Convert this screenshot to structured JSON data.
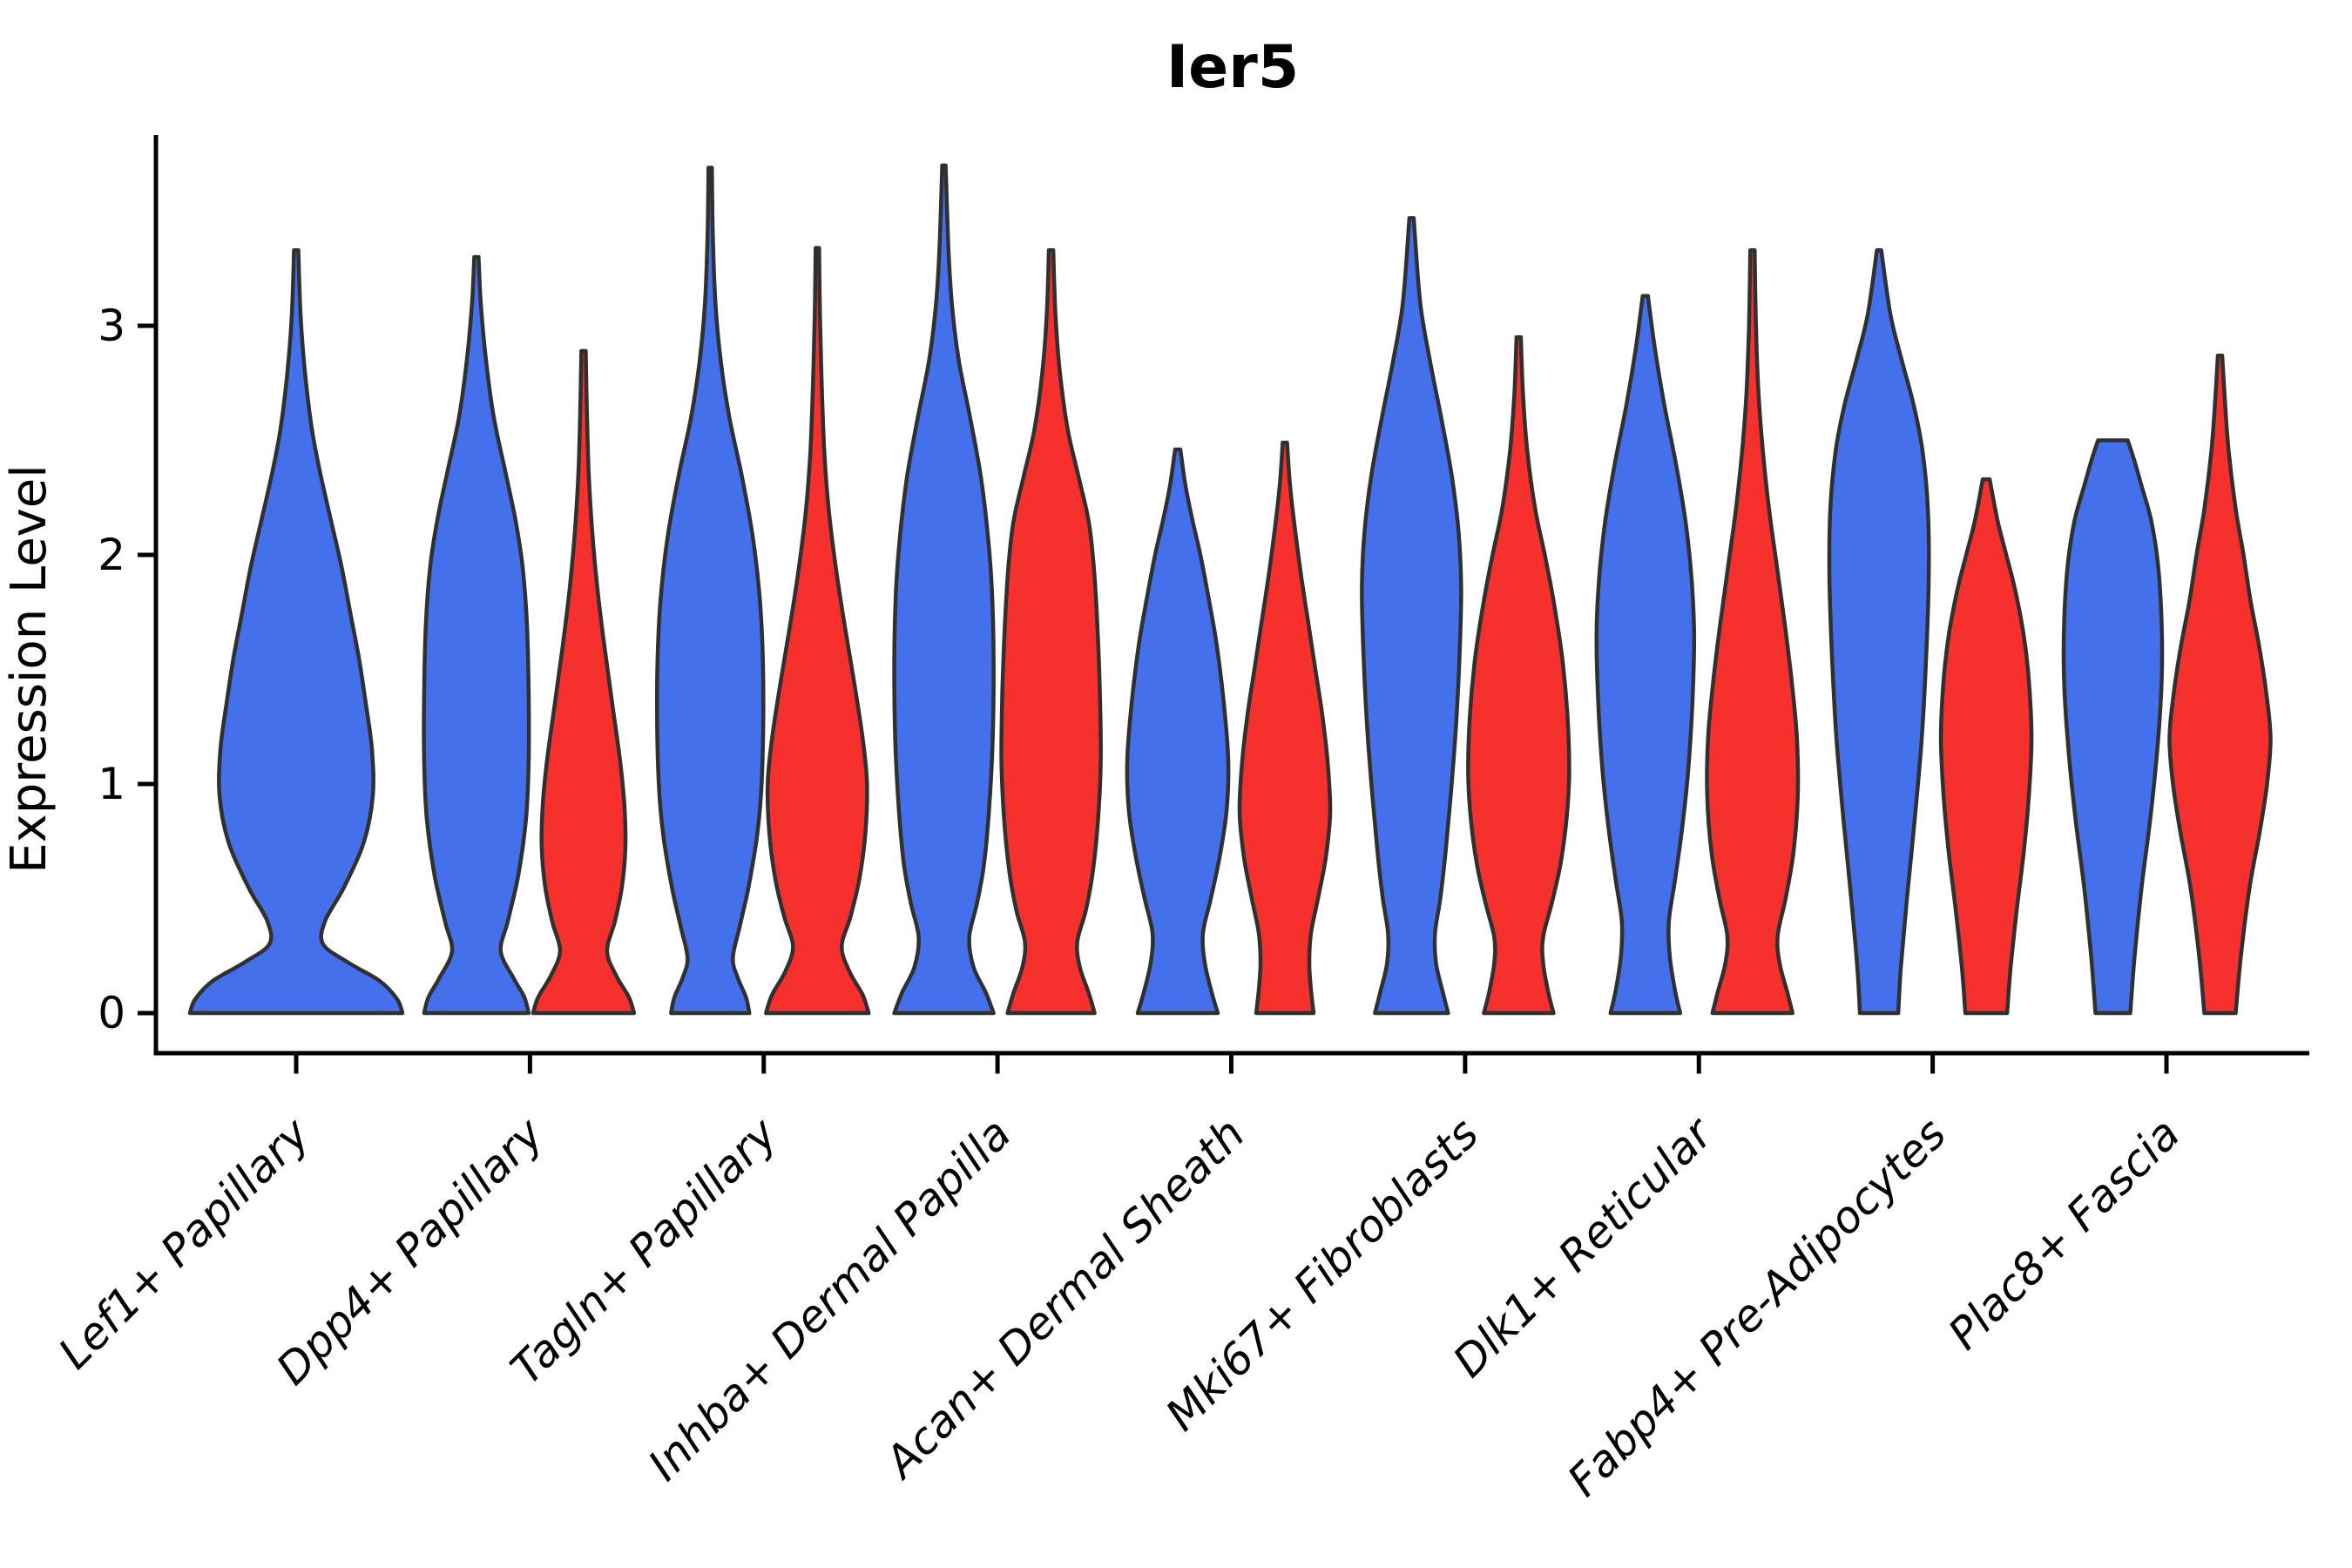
{
  "title": "Ier5",
  "axes": {
    "ylabel": "Expression Level",
    "y_tick_labels": [
      "0",
      "1",
      "2",
      "3"
    ],
    "y_tick_values": [
      0,
      1,
      2,
      3
    ]
  },
  "colors": {
    "blue_fill": "#4570EB",
    "red_fill": "#F5302D",
    "outline": "#303030",
    "axis": "#000000"
  },
  "chart_data": {
    "type": "violin",
    "title": "Ier5",
    "ylabel": "Expression Level",
    "yticks": [
      0,
      1,
      2,
      3
    ],
    "ylim": [
      0,
      3.85
    ],
    "grid": false,
    "legend": "none",
    "categories": [
      "Lef1+ Papillary",
      "Dpp4+ Papillary",
      "Tagln+ Papillary",
      "Inhba+ Dermal Papilla",
      "Acan+ Dermal Sheath",
      "Mki67+ Fibroblasts",
      "Dlk1+ Reticular",
      "Fabp4+ Pre-Adipocytes",
      "Plac8+ Fascia"
    ],
    "series": [
      {
        "name": "blue",
        "color": "#4570EB"
      },
      {
        "name": "red",
        "color": "#F5302D"
      }
    ],
    "violins": [
      {
        "category": "Lef1+ Papillary",
        "series": "blue",
        "single": true,
        "max_value": 3.33,
        "profile": [
          [
            0,
            122
          ],
          [
            0.06,
            116
          ],
          [
            0.14,
            96
          ],
          [
            0.22,
            60
          ],
          [
            0.3,
            31
          ],
          [
            0.4,
            33
          ],
          [
            0.55,
            55
          ],
          [
            0.75,
            78
          ],
          [
            0.95,
            88
          ],
          [
            1.15,
            87
          ],
          [
            1.35,
            80
          ],
          [
            1.55,
            72
          ],
          [
            1.75,
            62
          ],
          [
            1.95,
            52
          ],
          [
            2.15,
            40
          ],
          [
            2.35,
            28
          ],
          [
            2.55,
            18
          ],
          [
            2.8,
            10
          ],
          [
            3.05,
            5
          ],
          [
            3.33,
            2.5
          ]
        ]
      },
      {
        "category": "Dpp4+ Papillary",
        "series": "blue",
        "single": false,
        "max_value": 3.3,
        "profile": [
          [
            0,
            60
          ],
          [
            0.07,
            55
          ],
          [
            0.15,
            43
          ],
          [
            0.27,
            28
          ],
          [
            0.4,
            36
          ],
          [
            0.6,
            48
          ],
          [
            0.85,
            57
          ],
          [
            1.1,
            60
          ],
          [
            1.4,
            60
          ],
          [
            1.7,
            58
          ],
          [
            1.95,
            53
          ],
          [
            2.15,
            45
          ],
          [
            2.35,
            34
          ],
          [
            2.6,
            20
          ],
          [
            2.85,
            11
          ],
          [
            3.1,
            5
          ],
          [
            3.3,
            2.5
          ]
        ]
      },
      {
        "category": "Dpp4+ Papillary",
        "series": "red",
        "single": false,
        "max_value": 2.89,
        "profile": [
          [
            0,
            58
          ],
          [
            0.07,
            52
          ],
          [
            0.16,
            38
          ],
          [
            0.27,
            27
          ],
          [
            0.4,
            36
          ],
          [
            0.55,
            44
          ],
          [
            0.72,
            48
          ],
          [
            0.9,
            47
          ],
          [
            1.1,
            42
          ],
          [
            1.35,
            33
          ],
          [
            1.6,
            24
          ],
          [
            1.85,
            16
          ],
          [
            2.1,
            10
          ],
          [
            2.35,
            6
          ],
          [
            2.6,
            4
          ],
          [
            2.89,
            2.5
          ]
        ]
      },
      {
        "category": "Tagln+ Papillary",
        "series": "blue",
        "single": false,
        "max_value": 3.69,
        "profile": [
          [
            0,
            45
          ],
          [
            0.07,
            41
          ],
          [
            0.15,
            32
          ],
          [
            0.24,
            26
          ],
          [
            0.38,
            34
          ],
          [
            0.55,
            44
          ],
          [
            0.78,
            54
          ],
          [
            1.0,
            59
          ],
          [
            1.3,
            61
          ],
          [
            1.6,
            60
          ],
          [
            1.85,
            56
          ],
          [
            2.1,
            48
          ],
          [
            2.35,
            36
          ],
          [
            2.6,
            22
          ],
          [
            2.85,
            12
          ],
          [
            3.1,
            6
          ],
          [
            3.4,
            3
          ],
          [
            3.69,
            2
          ]
        ]
      },
      {
        "category": "Tagln+ Papillary",
        "series": "red",
        "single": false,
        "max_value": 3.34,
        "profile": [
          [
            0,
            59
          ],
          [
            0.08,
            52
          ],
          [
            0.18,
            37
          ],
          [
            0.29,
            28
          ],
          [
            0.42,
            38
          ],
          [
            0.58,
            48
          ],
          [
            0.78,
            55
          ],
          [
            1.0,
            57
          ],
          [
            1.2,
            52
          ],
          [
            1.45,
            42
          ],
          [
            1.7,
            31
          ],
          [
            1.95,
            21
          ],
          [
            2.2,
            13
          ],
          [
            2.45,
            8
          ],
          [
            2.75,
            5
          ],
          [
            3.05,
            3
          ],
          [
            3.34,
            2
          ]
        ]
      },
      {
        "category": "Inhba+ Dermal Papilla",
        "series": "blue",
        "single": false,
        "max_value": 3.7,
        "profile": [
          [
            0,
            57
          ],
          [
            0.09,
            48
          ],
          [
            0.2,
            34
          ],
          [
            0.33,
            29
          ],
          [
            0.48,
            38
          ],
          [
            0.65,
            46
          ],
          [
            0.9,
            52
          ],
          [
            1.2,
            56
          ],
          [
            1.55,
            57
          ],
          [
            1.85,
            55
          ],
          [
            2.1,
            50
          ],
          [
            2.35,
            42
          ],
          [
            2.6,
            30
          ],
          [
            2.85,
            17
          ],
          [
            3.1,
            9
          ],
          [
            3.35,
            5
          ],
          [
            3.7,
            2
          ]
        ]
      },
      {
        "category": "Inhba+ Dermal Papilla",
        "series": "red",
        "single": false,
        "max_value": 3.33,
        "profile": [
          [
            0,
            50
          ],
          [
            0.09,
            43
          ],
          [
            0.2,
            33
          ],
          [
            0.31,
            30
          ],
          [
            0.45,
            40
          ],
          [
            0.62,
            48
          ],
          [
            0.85,
            54
          ],
          [
            1.1,
            57
          ],
          [
            1.4,
            56
          ],
          [
            1.7,
            53
          ],
          [
            1.95,
            49
          ],
          [
            2.15,
            43
          ],
          [
            2.35,
            31
          ],
          [
            2.55,
            19
          ],
          [
            2.8,
            10
          ],
          [
            3.05,
            5
          ],
          [
            3.33,
            2.5
          ]
        ]
      },
      {
        "category": "Acan+ Dermal Sheath",
        "series": "blue",
        "single": false,
        "max_value": 2.46,
        "profile": [
          [
            0,
            46
          ],
          [
            0.09,
            39
          ],
          [
            0.22,
            31
          ],
          [
            0.35,
            29
          ],
          [
            0.5,
            38
          ],
          [
            0.68,
            48
          ],
          [
            0.88,
            56
          ],
          [
            1.1,
            58
          ],
          [
            1.35,
            53
          ],
          [
            1.6,
            45
          ],
          [
            1.8,
            36
          ],
          [
            2.0,
            26
          ],
          [
            2.15,
            17
          ],
          [
            2.3,
            9
          ],
          [
            2.46,
            3
          ]
        ]
      },
      {
        "category": "Acan+ Dermal Sheath",
        "series": "red",
        "single": false,
        "max_value": 2.49,
        "profile": [
          [
            0,
            33
          ],
          [
            0.1,
            30
          ],
          [
            0.22,
            28
          ],
          [
            0.35,
            30
          ],
          [
            0.5,
            38
          ],
          [
            0.68,
            47
          ],
          [
            0.88,
            52
          ],
          [
            1.1,
            49
          ],
          [
            1.3,
            43
          ],
          [
            1.5,
            35
          ],
          [
            1.7,
            27
          ],
          [
            1.9,
            19
          ],
          [
            2.1,
            12
          ],
          [
            2.3,
            6
          ],
          [
            2.49,
            2.5
          ]
        ]
      },
      {
        "category": "Mki67+ Fibroblasts",
        "series": "blue",
        "single": false,
        "max_value": 3.47,
        "profile": [
          [
            0,
            42
          ],
          [
            0.09,
            36
          ],
          [
            0.22,
            28
          ],
          [
            0.35,
            27
          ],
          [
            0.5,
            33
          ],
          [
            0.7,
            39
          ],
          [
            0.95,
            45
          ],
          [
            1.25,
            51
          ],
          [
            1.55,
            55
          ],
          [
            1.85,
            57
          ],
          [
            2.1,
            54
          ],
          [
            2.35,
            46
          ],
          [
            2.6,
            34
          ],
          [
            2.85,
            21
          ],
          [
            3.1,
            10
          ],
          [
            3.47,
            2.5
          ]
        ]
      },
      {
        "category": "Mki67+ Fibroblasts",
        "series": "red",
        "single": false,
        "max_value": 2.95,
        "profile": [
          [
            0,
            40
          ],
          [
            0.09,
            34
          ],
          [
            0.22,
            28
          ],
          [
            0.33,
            28
          ],
          [
            0.48,
            38
          ],
          [
            0.65,
            48
          ],
          [
            0.85,
            55
          ],
          [
            1.05,
            58
          ],
          [
            1.3,
            56
          ],
          [
            1.55,
            50
          ],
          [
            1.8,
            40
          ],
          [
            2.0,
            30
          ],
          [
            2.2,
            19
          ],
          [
            2.45,
            10
          ],
          [
            2.7,
            5
          ],
          [
            2.95,
            2.5
          ]
        ]
      },
      {
        "category": "Dlk1+ Reticular",
        "series": "blue",
        "single": false,
        "max_value": 3.13,
        "profile": [
          [
            0,
            40
          ],
          [
            0.1,
            34
          ],
          [
            0.25,
            28
          ],
          [
            0.4,
            27
          ],
          [
            0.58,
            34
          ],
          [
            0.8,
            42
          ],
          [
            1.05,
            49
          ],
          [
            1.35,
            54
          ],
          [
            1.65,
            56
          ],
          [
            1.9,
            53
          ],
          [
            2.15,
            46
          ],
          [
            2.4,
            35
          ],
          [
            2.65,
            22
          ],
          [
            2.9,
            11
          ],
          [
            3.13,
            3
          ]
        ]
      },
      {
        "category": "Dlk1+ Reticular",
        "series": "red",
        "single": false,
        "max_value": 3.33,
        "profile": [
          [
            0,
            46
          ],
          [
            0.09,
            40
          ],
          [
            0.22,
            31
          ],
          [
            0.34,
            29
          ],
          [
            0.5,
            38
          ],
          [
            0.7,
            47
          ],
          [
            0.95,
            52
          ],
          [
            1.2,
            51
          ],
          [
            1.45,
            45
          ],
          [
            1.7,
            37
          ],
          [
            1.95,
            28
          ],
          [
            2.2,
            19
          ],
          [
            2.45,
            12
          ],
          [
            2.7,
            7
          ],
          [
            3.0,
            4
          ],
          [
            3.33,
            2.5
          ]
        ]
      },
      {
        "category": "Fabp4+ Pre-Adipocytes",
        "series": "blue",
        "single": false,
        "max_value": 3.33,
        "profile": [
          [
            0,
            22
          ],
          [
            0.2,
            25
          ],
          [
            0.5,
            32
          ],
          [
            0.85,
            41
          ],
          [
            1.2,
            49
          ],
          [
            1.55,
            54
          ],
          [
            1.9,
            57
          ],
          [
            2.2,
            56
          ],
          [
            2.45,
            50
          ],
          [
            2.65,
            40
          ],
          [
            2.85,
            26
          ],
          [
            3.05,
            13
          ],
          [
            3.33,
            2.5
          ]
        ]
      },
      {
        "category": "Fabp4+ Pre-Adipocytes",
        "series": "red",
        "single": false,
        "max_value": 2.33,
        "profile": [
          [
            0,
            24
          ],
          [
            0.2,
            28
          ],
          [
            0.45,
            35
          ],
          [
            0.7,
            43
          ],
          [
            0.95,
            49
          ],
          [
            1.2,
            52
          ],
          [
            1.45,
            49
          ],
          [
            1.65,
            43
          ],
          [
            1.85,
            33
          ],
          [
            2.0,
            23
          ],
          [
            2.15,
            13
          ],
          [
            2.33,
            4
          ]
        ]
      },
      {
        "category": "Plac8+ Fascia",
        "series": "blue",
        "single": false,
        "max_value": 2.5,
        "flat_top": true,
        "profile": [
          [
            0,
            20
          ],
          [
            0.25,
            25
          ],
          [
            0.55,
            33
          ],
          [
            0.85,
            43
          ],
          [
            1.15,
            51
          ],
          [
            1.45,
            56
          ],
          [
            1.7,
            56
          ],
          [
            1.95,
            52
          ],
          [
            2.15,
            44
          ],
          [
            2.3,
            33
          ],
          [
            2.42,
            24
          ],
          [
            2.5,
            17
          ]
        ]
      },
      {
        "category": "Plac8+ Fascia",
        "series": "red",
        "single": false,
        "max_value": 2.87,
        "profile": [
          [
            0,
            18
          ],
          [
            0.25,
            24
          ],
          [
            0.55,
            34
          ],
          [
            0.8,
            46
          ],
          [
            1.0,
            54
          ],
          [
            1.2,
            58
          ],
          [
            1.4,
            53
          ],
          [
            1.6,
            45
          ],
          [
            1.8,
            35
          ],
          [
            2.0,
            27
          ],
          [
            2.2,
            18
          ],
          [
            2.45,
            10
          ],
          [
            2.65,
            6
          ],
          [
            2.87,
            2.5
          ]
        ]
      }
    ]
  }
}
